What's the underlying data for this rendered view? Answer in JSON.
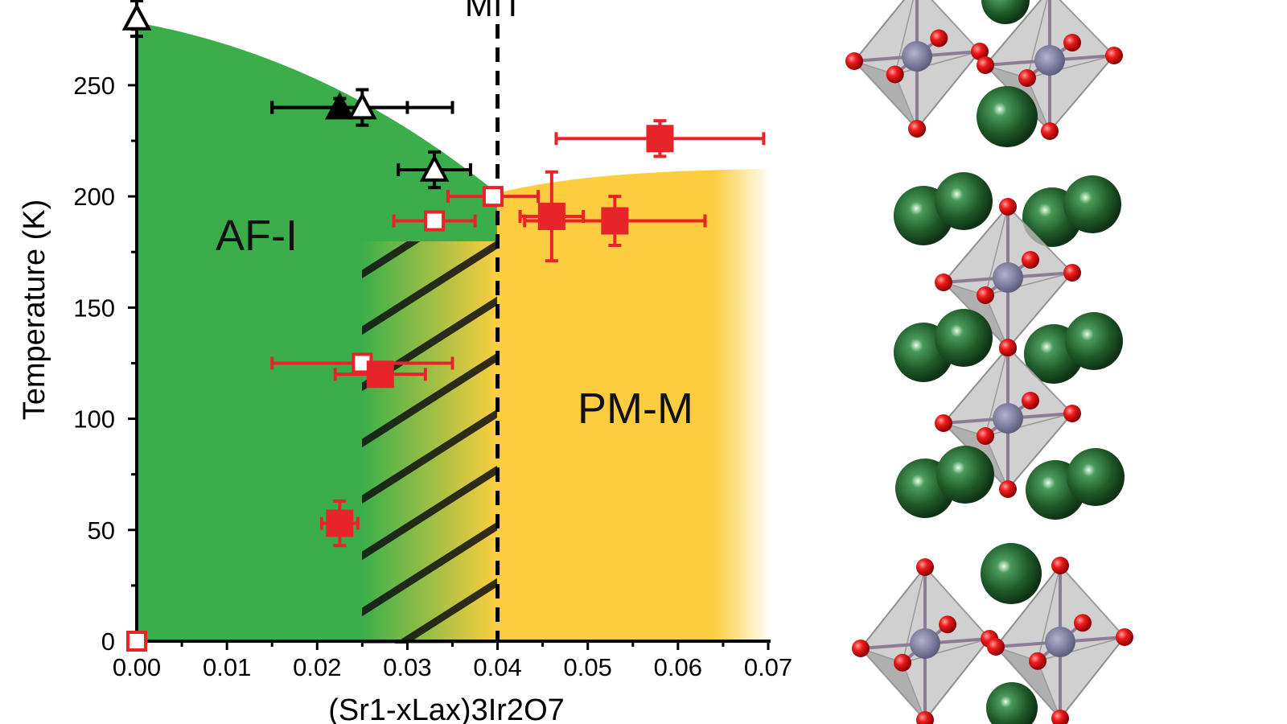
{
  "chart_data": {
    "type": "scatter",
    "xlabel": "(Sr1-xLax)3Ir2O7",
    "ylabel": "Temperature (K)",
    "xlim": [
      0,
      0.07
    ],
    "ylim": [
      0,
      280
    ],
    "xticks": [
      "0.00",
      "0.01",
      "0.02",
      "0.03",
      "0.04",
      "0.05",
      "0.06",
      "0.07"
    ],
    "yticks": [
      "0",
      "50",
      "100",
      "150",
      "200",
      "250"
    ],
    "xtick_values": [
      0,
      0.01,
      0.02,
      0.03,
      0.04,
      0.05,
      0.06,
      0.07
    ],
    "ytick_values": [
      0,
      50,
      100,
      150,
      200,
      250
    ],
    "annotations": {
      "mit": "MIT",
      "af_region": "AF-I",
      "pm_region": "PM-M"
    },
    "mit_x": 0.04,
    "regions": [
      {
        "label": "AF-I",
        "color": "#3aae4a"
      },
      {
        "label": "PM-M",
        "color": "#fcce3f"
      }
    ],
    "series": [
      {
        "marker": "triangle",
        "color": "#000000",
        "points": [
          {
            "x": 0.0,
            "y": 280,
            "xerr": 0,
            "yerr": 8,
            "filled": false
          },
          {
            "x": 0.0225,
            "y": 240,
            "xerr": 0.0075,
            "yerr": 4,
            "filled": true
          },
          {
            "x": 0.025,
            "y": 240,
            "xerr": 0.01,
            "yerr": 8,
            "filled": false
          },
          {
            "x": 0.033,
            "y": 212,
            "xerr": 0.004,
            "yerr": 8,
            "filled": false
          }
        ]
      },
      {
        "marker": "square",
        "color": "#e8242b",
        "points": [
          {
            "x": 0.0,
            "y": 0,
            "xerr": 0,
            "yerr": 0,
            "filled": false
          },
          {
            "x": 0.0225,
            "y": 53,
            "xerr": 0.002,
            "yerr": 10,
            "filled": true
          },
          {
            "x": 0.025,
            "y": 125,
            "xerr": 0.01,
            "yerr": 0,
            "filled": false
          },
          {
            "x": 0.027,
            "y": 120,
            "xerr": 0.005,
            "yerr": 0,
            "filled": true
          },
          {
            "x": 0.033,
            "y": 189,
            "xerr": 0.0045,
            "yerr": 0,
            "filled": false
          },
          {
            "x": 0.0395,
            "y": 200,
            "xerr": 0.005,
            "yerr": 0,
            "filled": false
          },
          {
            "x": 0.046,
            "y": 191,
            "xerr": 0.0035,
            "yerr": 20,
            "filled": true
          },
          {
            "x": 0.053,
            "y": 189,
            "xerr": 0.01,
            "yerr": 11,
            "filled": true
          },
          {
            "x": 0.058,
            "y": 226,
            "xerr": 0.0115,
            "yerr": 8,
            "filled": true
          }
        ]
      }
    ]
  }
}
